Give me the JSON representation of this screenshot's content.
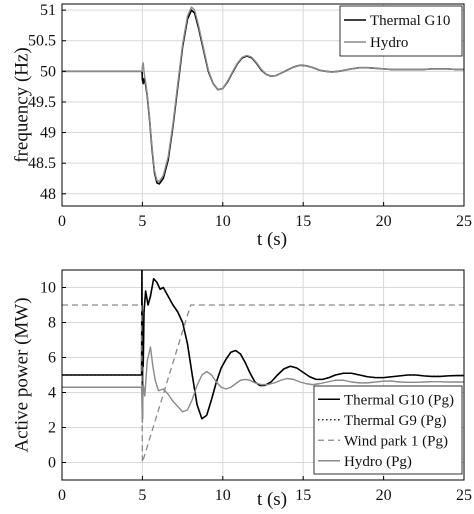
{
  "chart_data": [
    {
      "type": "line",
      "xlabel": "t (s)",
      "ylabel": "frequency (Hz)",
      "xlim": [
        0,
        25
      ],
      "ylim": [
        47.8,
        51.1
      ],
      "xticks": [
        "0",
        "5",
        "10",
        "15",
        "20",
        "25"
      ],
      "yticks": [
        "48",
        "48.5",
        "49",
        "49.5",
        "50",
        "50.5",
        "51"
      ],
      "grid": true,
      "legend_position": "top-right",
      "series": [
        {
          "name": "Thermal G10",
          "color": "#000000",
          "dash": "solid",
          "width": 1.6,
          "x": [
            0,
            4.98,
            5.0,
            5.05,
            5.1,
            5.15,
            5.2,
            5.3,
            5.45,
            5.6,
            5.75,
            5.9,
            6.05,
            6.3,
            6.6,
            6.9,
            7.2,
            7.5,
            7.8,
            8.05,
            8.25,
            8.5,
            8.8,
            9.1,
            9.4,
            9.7,
            10.0,
            10.3,
            10.6,
            10.9,
            11.2,
            11.5,
            11.8,
            12.1,
            12.4,
            12.7,
            13.0,
            13.3,
            13.7,
            14.0,
            14.4,
            14.8,
            15.2,
            15.6,
            16.0,
            16.4,
            16.8,
            17.2,
            17.6,
            18.0,
            18.5,
            19.0,
            19.5,
            20.0,
            20.5,
            21.0,
            21.5,
            22.0,
            22.5,
            23.0,
            23.5,
            24.0,
            24.5,
            25.0
          ],
          "y": [
            50.0,
            50.0,
            49.86,
            49.8,
            49.88,
            49.85,
            49.78,
            49.6,
            49.2,
            48.72,
            48.35,
            48.18,
            48.16,
            48.25,
            48.55,
            49.1,
            49.75,
            50.4,
            50.85,
            51.0,
            50.95,
            50.7,
            50.35,
            50.0,
            49.8,
            49.7,
            49.72,
            49.83,
            49.98,
            50.12,
            50.22,
            50.25,
            50.22,
            50.13,
            50.02,
            49.95,
            49.92,
            49.93,
            49.98,
            50.02,
            50.07,
            50.1,
            50.09,
            50.06,
            50.02,
            50.0,
            49.99,
            50.0,
            50.02,
            50.04,
            50.06,
            50.06,
            50.05,
            50.04,
            50.03,
            50.03,
            50.03,
            50.03,
            50.03,
            50.04,
            50.04,
            50.04,
            50.03,
            50.03
          ]
        },
        {
          "name": "Hydro",
          "color": "#8a8a8a",
          "dash": "solid",
          "width": 1.4,
          "x": [
            0,
            4.98,
            5.0,
            5.05,
            5.1,
            5.15,
            5.2,
            5.3,
            5.45,
            5.6,
            5.75,
            5.9,
            6.05,
            6.3,
            6.6,
            6.9,
            7.2,
            7.5,
            7.8,
            8.05,
            8.25,
            8.5,
            8.8,
            9.1,
            9.4,
            9.7,
            10.0,
            10.3,
            10.6,
            10.9,
            11.2,
            11.5,
            11.8,
            12.1,
            12.4,
            12.7,
            13.0,
            13.3,
            13.7,
            14.0,
            14.4,
            14.8,
            15.2,
            15.6,
            16.0,
            16.4,
            16.8,
            17.2,
            17.6,
            18.0,
            18.5,
            19.0,
            19.5,
            20.0,
            20.5,
            21.0,
            21.5,
            22.0,
            22.5,
            23.0,
            23.5,
            24.0,
            24.5,
            25.0
          ],
          "y": [
            50.0,
            50.0,
            50.08,
            50.14,
            50.0,
            49.9,
            49.82,
            49.62,
            49.22,
            48.75,
            48.38,
            48.22,
            48.2,
            48.3,
            48.6,
            49.14,
            49.8,
            50.44,
            50.9,
            51.05,
            51.0,
            50.74,
            50.38,
            50.02,
            49.8,
            49.7,
            49.72,
            49.84,
            49.99,
            50.13,
            50.23,
            50.26,
            50.23,
            50.14,
            50.03,
            49.95,
            49.92,
            49.93,
            49.98,
            50.02,
            50.07,
            50.1,
            50.09,
            50.06,
            50.02,
            50.0,
            49.99,
            50.0,
            50.02,
            50.04,
            50.06,
            50.06,
            50.05,
            50.04,
            50.03,
            50.03,
            50.03,
            50.03,
            50.03,
            50.04,
            50.04,
            50.04,
            50.03,
            50.03
          ]
        }
      ]
    },
    {
      "type": "line",
      "xlabel": "t (s)",
      "ylabel": "Active power (MW)",
      "xlim": [
        0,
        25
      ],
      "ylim": [
        -1,
        11
      ],
      "xticks": [
        "0",
        "5",
        "10",
        "15",
        "20",
        "25"
      ],
      "yticks": [
        "0",
        "2",
        "4",
        "6",
        "8",
        "10"
      ],
      "grid": true,
      "legend_position": "bottom-right",
      "series": [
        {
          "name": "Thermal G10 (Pg)",
          "color": "#000000",
          "dash": "solid",
          "width": 1.6,
          "x": [
            0,
            4.95,
            4.97,
            5.0,
            5.02,
            5.05,
            5.1,
            5.2,
            5.35,
            5.5,
            5.7,
            5.9,
            6.1,
            6.3,
            6.6,
            6.9,
            7.2,
            7.5,
            7.8,
            8.1,
            8.4,
            8.7,
            9.0,
            9.3,
            9.6,
            9.9,
            10.2,
            10.5,
            10.8,
            11.1,
            11.4,
            11.7,
            12.0,
            12.3,
            12.6,
            13.0,
            13.4,
            13.8,
            14.2,
            14.6,
            15.0,
            15.4,
            15.8,
            16.2,
            16.6,
            17.0,
            17.5,
            18.0,
            18.5,
            19.0,
            19.5,
            20.0,
            20.5,
            21.0,
            21.5,
            22.0,
            22.5,
            23.0,
            23.5,
            24.0,
            24.5,
            25.0
          ],
          "y": [
            5.0,
            5.0,
            11.0,
            2.5,
            8.0,
            5.5,
            8.6,
            9.8,
            9.0,
            9.5,
            10.5,
            10.3,
            9.9,
            10.0,
            9.5,
            9.0,
            8.6,
            8.0,
            6.8,
            5.0,
            3.3,
            2.5,
            2.7,
            3.6,
            4.6,
            5.4,
            5.9,
            6.3,
            6.4,
            6.2,
            5.7,
            5.1,
            4.6,
            4.4,
            4.4,
            4.6,
            5.0,
            5.35,
            5.5,
            5.4,
            5.15,
            4.9,
            4.75,
            4.75,
            4.85,
            5.0,
            5.1,
            5.1,
            5.0,
            4.9,
            4.85,
            4.85,
            4.9,
            4.95,
            5.0,
            5.0,
            4.95,
            4.92,
            4.92,
            4.95,
            4.97,
            4.97
          ]
        },
        {
          "name": "Thermal G9 (Pg)",
          "color": "#000000",
          "dash": "dotted",
          "width": 1.2,
          "x": [
            0,
            4.95,
            4.97,
            5.0,
            5.02,
            5.05,
            5.1,
            5.2,
            5.35,
            5.5,
            5.7,
            5.9,
            6.1,
            6.3,
            6.6,
            6.9,
            7.2,
            7.5,
            7.8,
            8.1,
            8.4,
            8.7,
            9.0,
            9.3,
            9.6,
            9.9,
            10.2,
            10.5,
            10.8,
            11.1,
            11.4,
            11.7,
            12.0,
            12.3,
            12.6,
            13.0,
            13.4,
            13.8,
            14.2,
            14.6,
            15.0,
            15.4,
            15.8,
            16.2,
            16.6,
            17.0,
            17.5,
            18.0,
            18.5,
            19.0,
            19.5,
            20.0,
            20.5,
            21.0,
            21.5,
            22.0,
            22.5,
            23.0,
            23.5,
            24.0,
            24.5,
            25.0
          ],
          "y": [
            5.0,
            5.0,
            11.0,
            2.5,
            8.0,
            5.5,
            8.6,
            9.8,
            9.0,
            9.5,
            10.5,
            10.3,
            9.9,
            10.0,
            9.5,
            9.0,
            8.6,
            8.0,
            6.8,
            5.0,
            3.3,
            2.5,
            2.7,
            3.6,
            4.6,
            5.4,
            5.9,
            6.3,
            6.4,
            6.2,
            5.7,
            5.1,
            4.6,
            4.4,
            4.4,
            4.6,
            5.0,
            5.35,
            5.5,
            5.4,
            5.15,
            4.9,
            4.75,
            4.75,
            4.85,
            5.0,
            5.1,
            5.1,
            5.0,
            4.9,
            4.85,
            4.85,
            4.9,
            4.95,
            5.0,
            5.0,
            4.95,
            4.92,
            4.92,
            4.95,
            4.97,
            4.97
          ]
        },
        {
          "name": "Wind park 1 (Pg)",
          "color": "#8a8a8a",
          "dash": "dashed",
          "width": 1.3,
          "x": [
            0,
            4.95,
            5.0,
            8.0,
            25.0
          ],
          "y": [
            9.0,
            9.0,
            0.0,
            9.0,
            9.0
          ]
        },
        {
          "name": "Hydro (Pg)",
          "color": "#8a8a8a",
          "dash": "solid",
          "width": 1.4,
          "x": [
            0,
            4.95,
            5.0,
            5.05,
            5.15,
            5.3,
            5.5,
            5.65,
            5.8,
            6.0,
            6.3,
            6.6,
            6.9,
            7.2,
            7.5,
            7.8,
            8.1,
            8.4,
            8.7,
            9.0,
            9.3,
            9.6,
            9.9,
            10.2,
            10.5,
            10.8,
            11.1,
            11.4,
            11.7,
            12.0,
            12.4,
            12.8,
            13.2,
            13.6,
            14.0,
            14.4,
            14.8,
            15.2,
            15.6,
            16.0,
            16.5,
            17.0,
            17.5,
            18.0,
            18.5,
            19.0,
            19.5,
            20.0,
            20.5,
            21.0,
            21.5,
            22.0,
            22.5,
            23.0,
            23.5,
            24.0,
            24.5,
            25.0
          ],
          "y": [
            4.3,
            4.3,
            2.3,
            4.5,
            3.8,
            5.8,
            6.6,
            5.5,
            4.7,
            4.1,
            4.2,
            3.9,
            3.5,
            3.2,
            2.9,
            3.0,
            3.6,
            4.4,
            5.0,
            5.2,
            5.0,
            4.6,
            4.3,
            4.2,
            4.3,
            4.5,
            4.7,
            4.75,
            4.7,
            4.55,
            4.45,
            4.45,
            4.55,
            4.7,
            4.8,
            4.75,
            4.6,
            4.5,
            4.45,
            4.5,
            4.6,
            4.7,
            4.7,
            4.6,
            4.55,
            4.55,
            4.6,
            4.65,
            4.65,
            4.6,
            4.58,
            4.58,
            4.6,
            4.62,
            4.62,
            4.6,
            4.6,
            4.6
          ]
        }
      ]
    }
  ]
}
